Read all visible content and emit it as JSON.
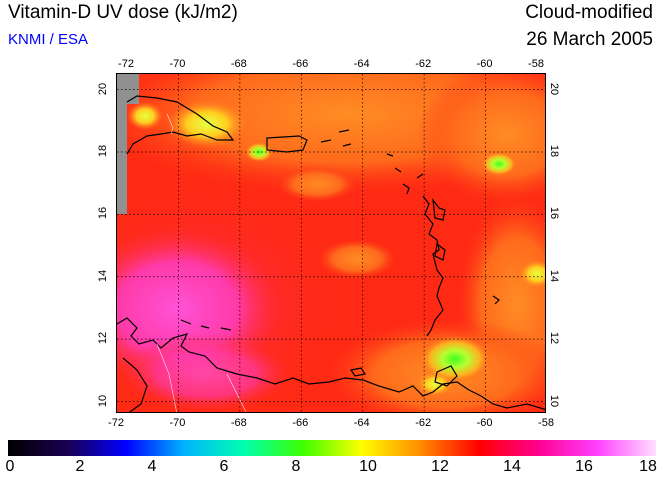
{
  "header": {
    "title": "Vitamin-D UV dose (kJ/m2)",
    "source": "KNMI / ESA",
    "product": "Cloud-modified",
    "date": "26 March 2005"
  },
  "map": {
    "lon_ticks_top": [
      "-72",
      "-70",
      "-68",
      "-66",
      "-64",
      "-62",
      "-60",
      "-58"
    ],
    "lon_ticks_bottom": [
      "-72",
      "-70",
      "-68",
      "-66",
      "-64",
      "-62",
      "-60",
      "-58"
    ],
    "lat_ticks": [
      "20",
      "18",
      "16",
      "14",
      "12",
      "10"
    ],
    "lon_range": [
      -72,
      -58
    ],
    "lat_range": [
      9.6,
      20.5
    ],
    "grid": true,
    "colors": {
      "background_red": "#ff2a14",
      "orange": "#ff7a1e",
      "magenta": "#ff3aa0",
      "pink": "#ff50d2",
      "yellow_green": "#c8ff3a",
      "no_data": "#909090"
    }
  },
  "colorbar": {
    "labels": [
      "0",
      "2",
      "4",
      "6",
      "8",
      "10",
      "12",
      "14",
      "16",
      "18"
    ],
    "range": [
      0,
      18
    ],
    "stops": [
      "#000000",
      "#1a0050",
      "#0000ff",
      "#00b4ff",
      "#00ffb0",
      "#3cff00",
      "#ffff00",
      "#ff8c00",
      "#ff0000",
      "#ff0090",
      "#ff40ff",
      "#ffe0ff"
    ]
  }
}
